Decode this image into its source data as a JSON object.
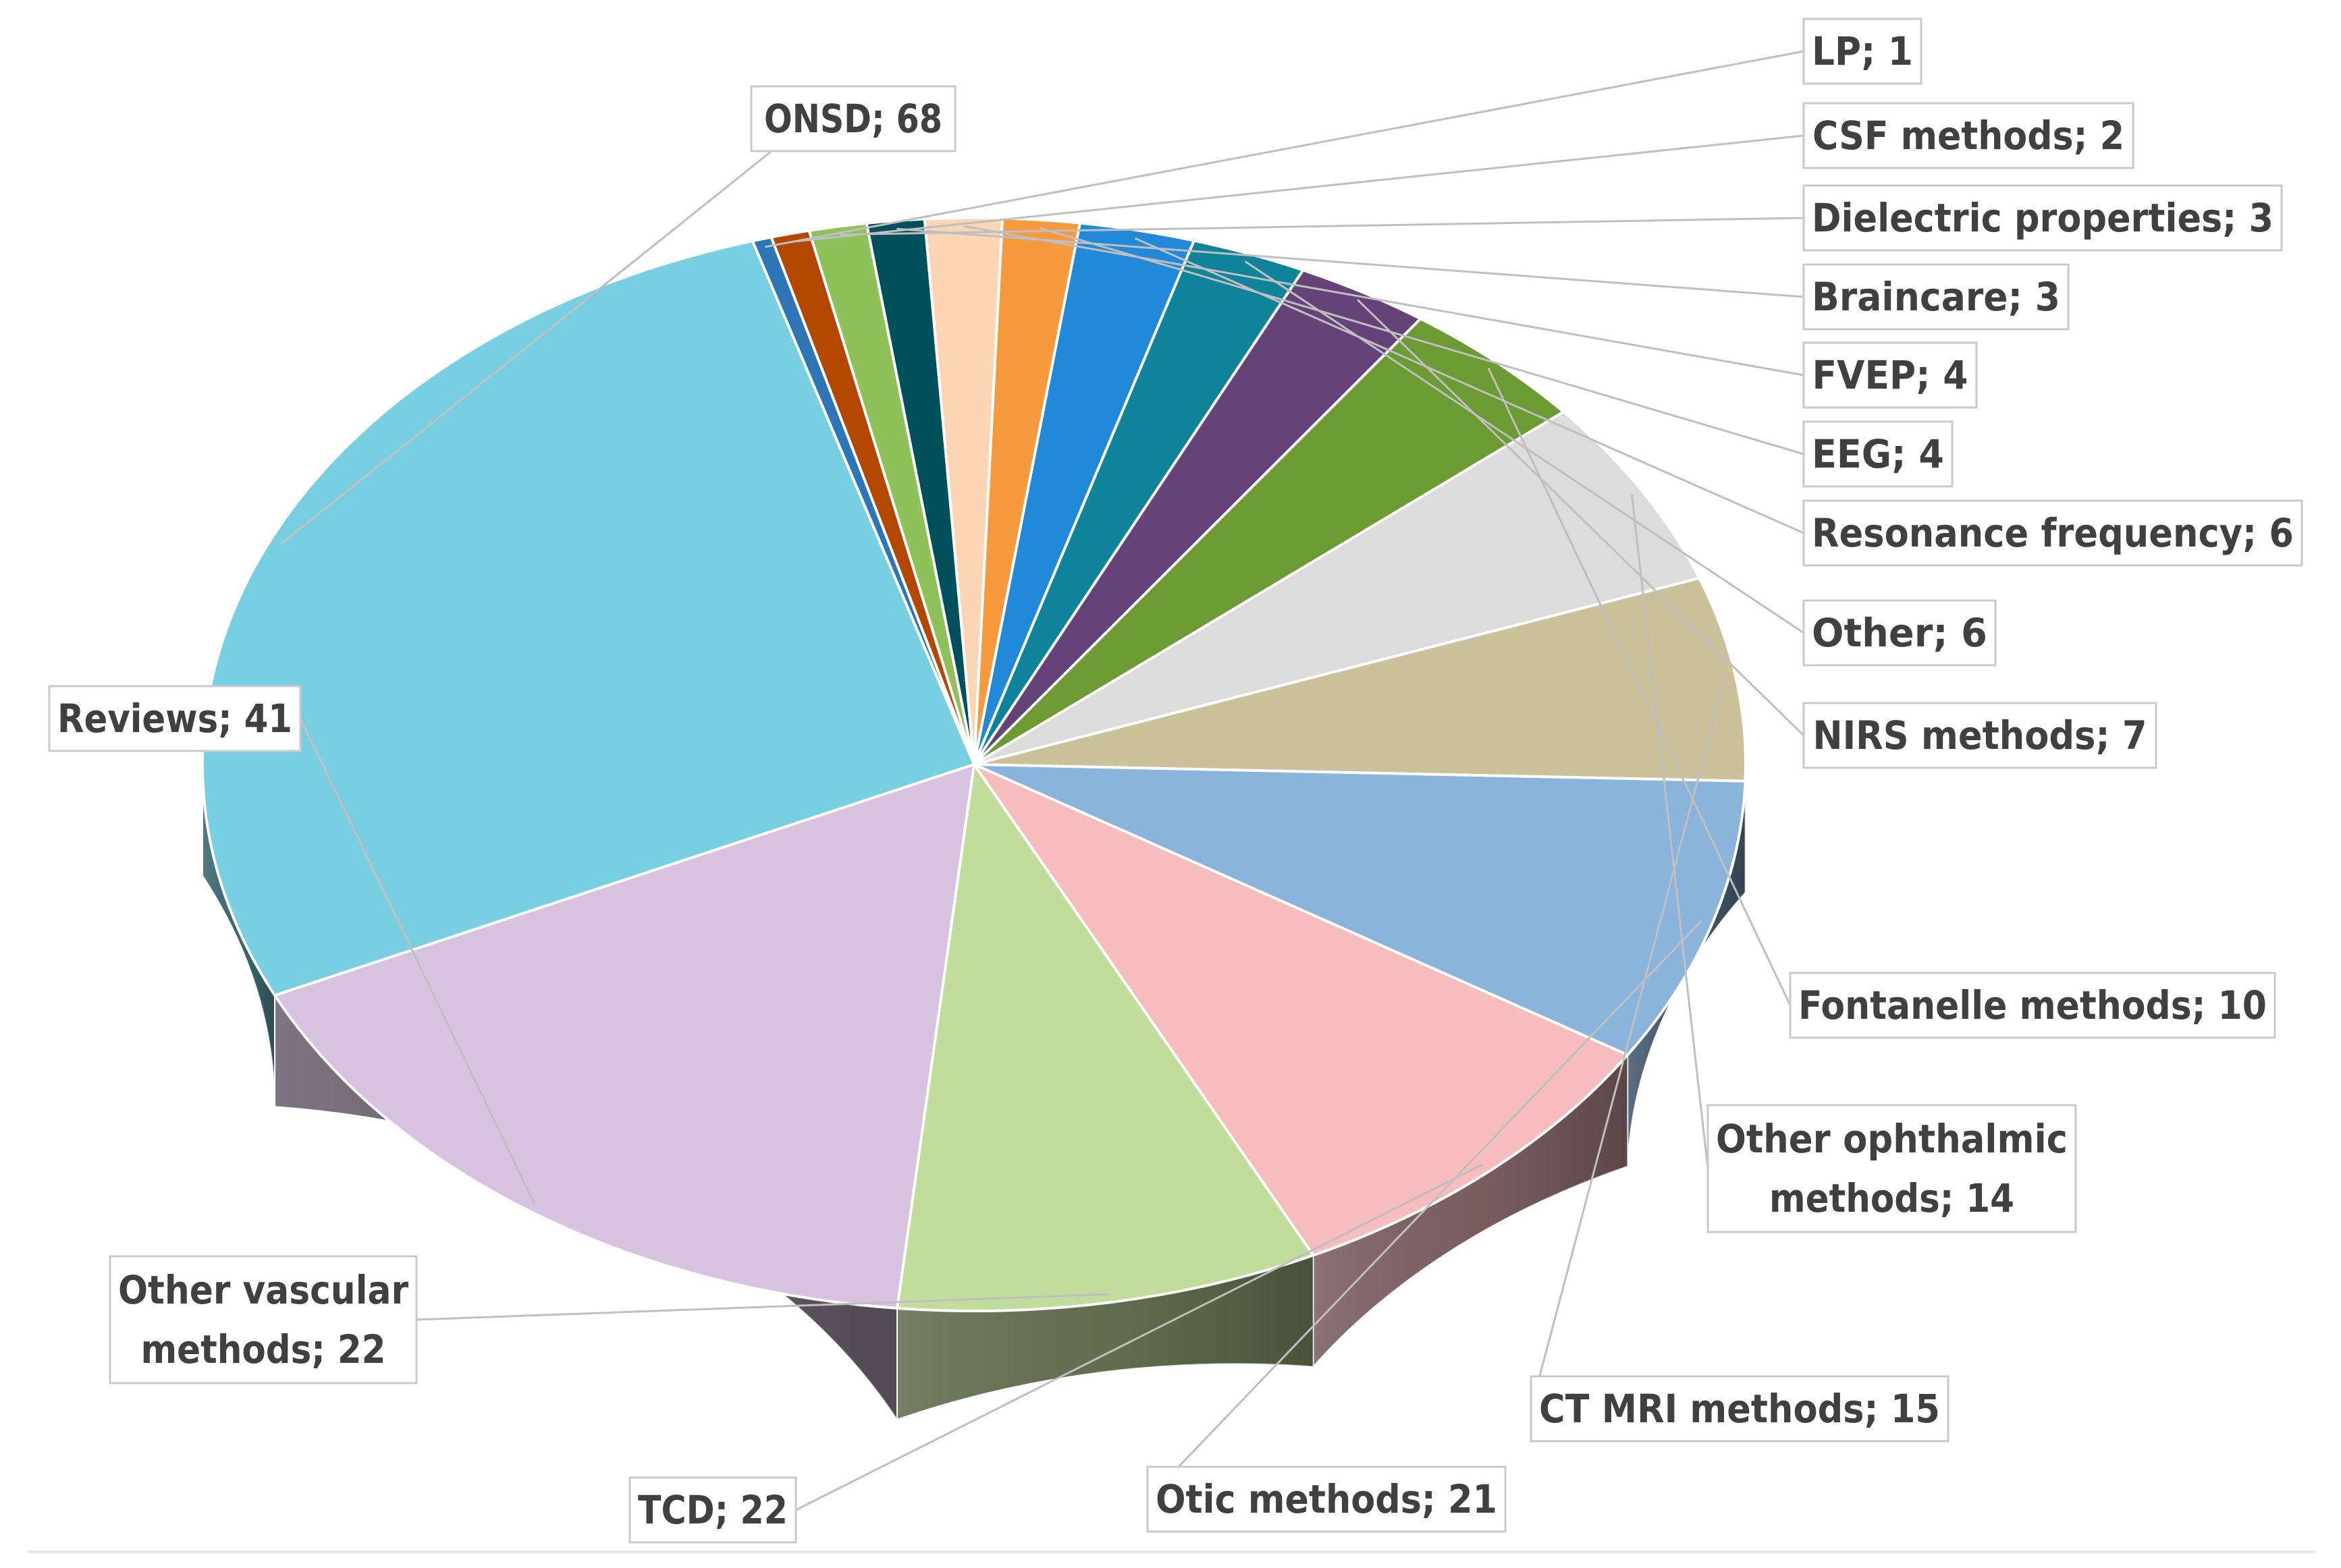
{
  "chart_data": {
    "type": "pie",
    "style": "3d",
    "title": "",
    "data_labels_format": "category; value",
    "slices": [
      {
        "label": "ONSD",
        "value": 68,
        "color": "#78CFE1"
      },
      {
        "label": "LP",
        "value": 1,
        "color": "#2E75B6"
      },
      {
        "label": "CSF methods",
        "value": 2,
        "color": "#B34700"
      },
      {
        "label": "Dielectric properties",
        "value": 3,
        "color": "#8FC15A"
      },
      {
        "label": "Braincare",
        "value": 3,
        "color": "#004F5C"
      },
      {
        "label": "FVEP",
        "value": 4,
        "color": "#FCD5B4"
      },
      {
        "label": "EEG",
        "value": 4,
        "color": "#F79A3E"
      },
      {
        "label": "Resonance frequency",
        "value": 6,
        "color": "#2288D8"
      },
      {
        "label": "Other",
        "value": 6,
        "color": "#0E8399"
      },
      {
        "label": "NIRS methods",
        "value": 7,
        "color": "#654378"
      },
      {
        "label": "Fontanelle methods",
        "value": 10,
        "color": "#6C9A33"
      },
      {
        "label": "Other ophthalmic methods",
        "value": 14,
        "color": "#DCDCDC"
      },
      {
        "label": "CT MRI methods",
        "value": 15,
        "color": "#CBC29C"
      },
      {
        "label": "Otic methods",
        "value": 21,
        "color": "#8BB4DC"
      },
      {
        "label": "TCD",
        "value": 22,
        "color": "#F7BCBE"
      },
      {
        "label": "Other vascular methods",
        "value": 22,
        "color": "#C2DC9C"
      },
      {
        "label": "Reviews",
        "value": 41,
        "color": "#D7C3DF"
      }
    ],
    "labels": [
      {
        "lines": [
          "ONSD; 68"
        ]
      },
      {
        "lines": [
          "LP; 1"
        ]
      },
      {
        "lines": [
          "CSF methods; 2"
        ]
      },
      {
        "lines": [
          "Dielectric properties; 3"
        ]
      },
      {
        "lines": [
          "Braincare; 3"
        ]
      },
      {
        "lines": [
          "FVEP; 4"
        ]
      },
      {
        "lines": [
          "EEG; 4"
        ]
      },
      {
        "lines": [
          "Resonance frequency; 6"
        ]
      },
      {
        "lines": [
          "Other; 6"
        ]
      },
      {
        "lines": [
          "NIRS methods; 7"
        ]
      },
      {
        "lines": [
          "Fontanelle methods; 10"
        ]
      },
      {
        "lines": [
          "Other ophthalmic",
          "methods; 14"
        ]
      },
      {
        "lines": [
          "CT MRI methods; 15"
        ]
      },
      {
        "lines": [
          "Otic methods; 21"
        ]
      },
      {
        "lines": [
          "TCD; 22"
        ]
      },
      {
        "lines": [
          "Other vascular",
          "methods; 22"
        ]
      },
      {
        "lines": [
          "Reviews; 41"
        ]
      }
    ]
  }
}
